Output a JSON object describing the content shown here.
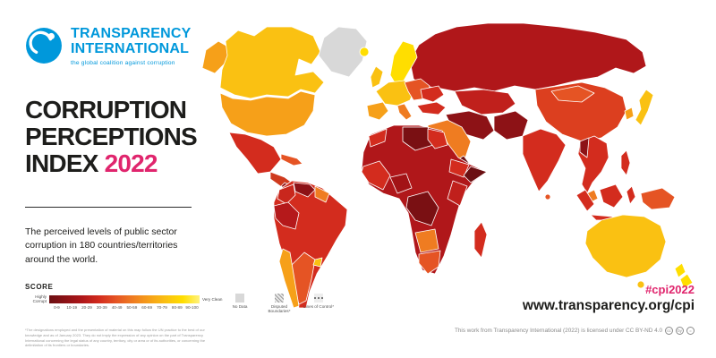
{
  "colors": {
    "brand_blue": "#0098DB",
    "accent_pink": "#E0256D",
    "text_black": "#1D1D1B",
    "no_data_gray": "#D8D8D8"
  },
  "brand": {
    "name_line1": "TRANSPARENCY",
    "name_line2": "INTERNATIONAL",
    "tagline": "the global coalition against corruption"
  },
  "title": {
    "line1": "CORRUPTION",
    "line2": "PERCEPTIONS",
    "line3": "INDEX",
    "year": "2022"
  },
  "subtitle": "The perceived levels of public sector corruption in 180 countries/territories around the world.",
  "legend": {
    "score_label": "SCORE",
    "low_label": "Highly Corrupt",
    "high_label": "Very Clean",
    "bins": [
      {
        "range": "0-9",
        "color": "#6B0F12"
      },
      {
        "range": "10-19",
        "color": "#8D1216"
      },
      {
        "range": "20-29",
        "color": "#B0171A"
      },
      {
        "range": "30-39",
        "color": "#D32C1E"
      },
      {
        "range": "40-49",
        "color": "#E55424"
      },
      {
        "range": "50-59",
        "color": "#EF7C21"
      },
      {
        "range": "60-69",
        "color": "#F6A019"
      },
      {
        "range": "70-79",
        "color": "#FAC112"
      },
      {
        "range": "80-89",
        "color": "#FFDE00"
      },
      {
        "range": "90-100",
        "color": "#FFF27D"
      }
    ],
    "no_data": {
      "label": "No Data",
      "color": "#D8D8D8"
    },
    "disputed": {
      "label": "Disputed Boundaries*"
    },
    "lines_of_control": {
      "label": "Lines of Control*"
    }
  },
  "footer": {
    "hashtag": "#cpi2022",
    "url": "www.transparency.org/cpi",
    "license": "This work from Transparency International (2022) is licensed under CC BY-ND 4.0",
    "icons": {
      "cc": "cc",
      "by": "by",
      "nd": "="
    },
    "footnote": "*The designations employed and the presentation of material on this map follow the UN practice to the best of our knowledge and as of January 2023. They do not imply the expression of any opinion on the part of Transparency International concerning the legal status of any country, territory, city or area or of its authorities, or concerning the delimitation of its frontiers or boundaries."
  },
  "map": {
    "region_colors": {
      "greenland": "#D8D8D8",
      "alaska": "#F6A019",
      "canada": "#FAC112",
      "usa": "#F6A019",
      "mexico": "#D32C1E",
      "central-america": "#CF3A1E",
      "nicaragua": "#8D1216",
      "cuba": "#E55424",
      "south-america": "#D32C1E",
      "venezuela": "#8D1216",
      "colombia": "#C9271D",
      "guianas": "#EF7C21",
      "peru-bolivia": "#B5191B",
      "chile": "#F6A019",
      "argentina": "#E55424",
      "uruguay": "#FAC112",
      "iceland": "#FFDE00",
      "uk": "#FAC112",
      "scandinavia": "#FFDE00",
      "west-europe": "#FAC112",
      "iberia": "#F6A019",
      "italy": "#EF7C21",
      "east-europe": "#E55424",
      "ukraine": "#D32C1E",
      "russia": "#B0171A",
      "central-asia": "#C0201C",
      "turkey": "#D32C1E",
      "iran-iraq": "#8D1216",
      "saudi": "#EF7C21",
      "yemen": "#6B0F12",
      "pak-afghan": "#8D1216",
      "india": "#D32C1E",
      "sri-lanka": "#E55424",
      "china": "#DC3F1F",
      "mongolia": "#E55424",
      "korea": "#F6A019",
      "japan": "#FAC112",
      "indochina": "#D32C1E",
      "myanmar": "#8D1216",
      "malaysia": "#EF7C21",
      "sumatra": "#D32C1E",
      "java": "#D32C1E",
      "borneo": "#D32C1E",
      "sulawesi": "#D32C1E",
      "new-guinea": "#E55424",
      "philippines": "#D32C1E",
      "australia": "#FAC112",
      "tasmania": "#FAC112",
      "new-zealand": "#FFDE00",
      "africa-base": "#B0171A",
      "morocco": "#D32C1E",
      "libya": "#7A1013",
      "egypt": "#D32C1E",
      "west-africa": "#D32C1E",
      "nigeria": "#A21316",
      "drc": "#7A1013",
      "ethiopia": "#D32C1E",
      "somalia": "#6B0F12",
      "kenya-tanzania": "#C0201C",
      "botswana-namibia": "#EF7C21",
      "south-africa": "#E55424",
      "madagascar": "#D32C1E"
    }
  }
}
